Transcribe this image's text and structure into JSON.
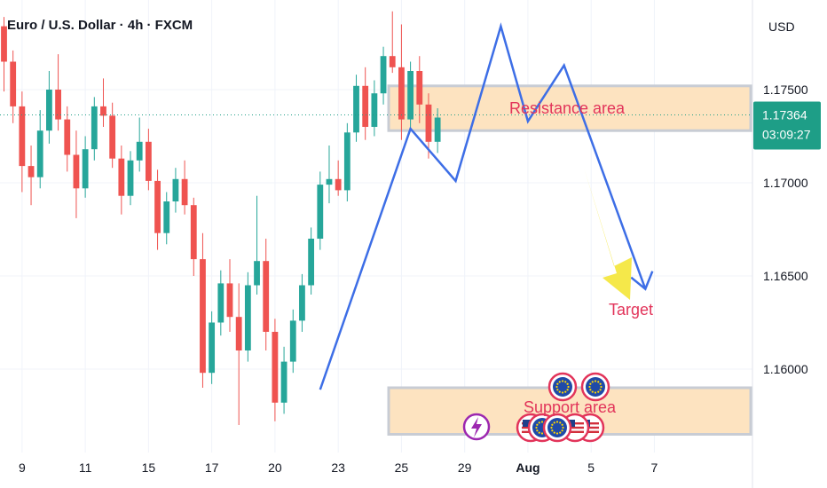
{
  "header": {
    "title": "Euro / U.S. Dollar · 4h · FXCM"
  },
  "colors": {
    "up": "#26a69a",
    "down": "#ef5350",
    "zone_fill": "#fde3c0",
    "zone_border": "#c8ccd4",
    "projection": "#3d6ee6",
    "arrow": "#f5e84a",
    "label": "#e2345a",
    "price_tag": "#1e9e87"
  },
  "chart_data": {
    "type": "candlestick",
    "y_axis": {
      "currency": "USD",
      "ticks": [
        "1.17500",
        "1.17000",
        "1.16500",
        "1.16000"
      ],
      "tick_values": [
        1.175,
        1.17,
        1.165,
        1.16
      ],
      "range": [
        1.1565,
        1.1795
      ]
    },
    "x_axis": {
      "ticks": [
        "9",
        "11",
        "15",
        "17",
        "20",
        "23",
        "25",
        "29",
        "Aug",
        "5",
        "7"
      ],
      "tick_positions": [
        2,
        9,
        16,
        23,
        30,
        37,
        44,
        51,
        58,
        65,
        72
      ]
    },
    "current_price": {
      "price": "1.17364",
      "countdown": "03:09:27",
      "value": 1.17364
    },
    "zones": [
      {
        "label": "Resistance area",
        "from": 1.1728,
        "to": 1.1752
      },
      {
        "label": "Support area",
        "from": 1.1565,
        "to": 1.159
      }
    ],
    "annotations": [
      {
        "label": "Target"
      }
    ],
    "candles": [
      [
        1.1784,
        1.1789,
        1.1749,
        1.1765
      ],
      [
        1.1765,
        1.1771,
        1.1732,
        1.1741
      ],
      [
        1.1741,
        1.1749,
        1.1695,
        1.1709
      ],
      [
        1.1709,
        1.172,
        1.1688,
        1.1703
      ],
      [
        1.1703,
        1.1739,
        1.1697,
        1.1728
      ],
      [
        1.1728,
        1.176,
        1.1721,
        1.175
      ],
      [
        1.175,
        1.1769,
        1.1728,
        1.1734
      ],
      [
        1.1734,
        1.1741,
        1.1706,
        1.1715
      ],
      [
        1.1715,
        1.1728,
        1.1681,
        1.1697
      ],
      [
        1.1697,
        1.1725,
        1.1692,
        1.1718
      ],
      [
        1.1718,
        1.1746,
        1.1712,
        1.1741
      ],
      [
        1.1741,
        1.1756,
        1.173,
        1.1736
      ],
      [
        1.1736,
        1.1743,
        1.1708,
        1.1713
      ],
      [
        1.1713,
        1.172,
        1.1683,
        1.1693
      ],
      [
        1.1693,
        1.1717,
        1.1688,
        1.1712
      ],
      [
        1.1712,
        1.1735,
        1.1706,
        1.1722
      ],
      [
        1.1722,
        1.1729,
        1.1696,
        1.1701
      ],
      [
        1.1701,
        1.1707,
        1.1664,
        1.1673
      ],
      [
        1.1673,
        1.1695,
        1.1667,
        1.169
      ],
      [
        1.169,
        1.1708,
        1.1684,
        1.1702
      ],
      [
        1.1702,
        1.1712,
        1.1683,
        1.1688
      ],
      [
        1.1688,
        1.1692,
        1.165,
        1.1659
      ],
      [
        1.1659,
        1.1673,
        1.159,
        1.1598
      ],
      [
        1.1598,
        1.1631,
        1.1592,
        1.1625
      ],
      [
        1.1625,
        1.1653,
        1.1618,
        1.1646
      ],
      [
        1.1646,
        1.1659,
        1.162,
        1.1628
      ],
      [
        1.1628,
        1.1646,
        1.157,
        1.161
      ],
      [
        1.161,
        1.1652,
        1.1604,
        1.1645
      ],
      [
        1.1645,
        1.1693,
        1.164,
        1.1658
      ],
      [
        1.1658,
        1.167,
        1.161,
        1.162
      ],
      [
        1.162,
        1.1627,
        1.1572,
        1.1582
      ],
      [
        1.1582,
        1.1612,
        1.1576,
        1.1604
      ],
      [
        1.1604,
        1.1632,
        1.1598,
        1.1626
      ],
      [
        1.1626,
        1.1651,
        1.162,
        1.1645
      ],
      [
        1.1645,
        1.1676,
        1.164,
        1.167
      ],
      [
        1.167,
        1.1706,
        1.1664,
        1.1699
      ],
      [
        1.1699,
        1.172,
        1.1689,
        1.1702
      ],
      [
        1.1702,
        1.1712,
        1.1693,
        1.1696
      ],
      [
        1.1696,
        1.1732,
        1.169,
        1.1727
      ],
      [
        1.1727,
        1.1758,
        1.1722,
        1.1752
      ],
      [
        1.1752,
        1.1762,
        1.1723,
        1.173
      ],
      [
        1.173,
        1.1755,
        1.1725,
        1.1748
      ],
      [
        1.1748,
        1.1773,
        1.1742,
        1.1768
      ],
      [
        1.1768,
        1.1792,
        1.1759,
        1.1762
      ],
      [
        1.1762,
        1.1785,
        1.1723,
        1.1734
      ],
      [
        1.1734,
        1.1765,
        1.1729,
        1.176
      ],
      [
        1.176,
        1.1768,
        1.1732,
        1.1742
      ],
      [
        1.1742,
        1.1748,
        1.1713,
        1.1722
      ],
      [
        1.1722,
        1.174,
        1.1716,
        1.1735
      ]
    ],
    "projection": [
      [
        35,
        1.1589
      ],
      [
        45,
        1.1729
      ],
      [
        50,
        1.1701
      ],
      [
        55,
        1.1784
      ],
      [
        58,
        1.1733
      ],
      [
        62,
        1.1763
      ],
      [
        71,
        1.1643
      ]
    ]
  }
}
